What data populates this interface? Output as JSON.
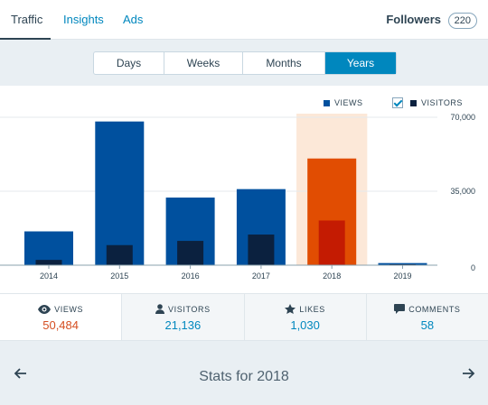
{
  "tabs": [
    {
      "label": "Traffic",
      "active": true
    },
    {
      "label": "Insights",
      "active": false
    },
    {
      "label": "Ads",
      "active": false
    }
  ],
  "followers": {
    "label": "Followers",
    "count": "220"
  },
  "periods": [
    {
      "label": "Days",
      "selected": false
    },
    {
      "label": "Weeks",
      "selected": false
    },
    {
      "label": "Months",
      "selected": false
    },
    {
      "label": "Years",
      "selected": true
    }
  ],
  "legend": {
    "views": "VIEWS",
    "visitors": "VISITORS",
    "visitors_checked": true
  },
  "colors": {
    "views": "#00509e",
    "visitors": "#0b213f",
    "selected_views": "#e14d02",
    "selected_visitors": "#c41b02",
    "selected_band": "#fce8d8",
    "accent": "#0087be"
  },
  "chart_data": {
    "type": "bar",
    "categories": [
      "2014",
      "2015",
      "2016",
      "2017",
      "2018",
      "2019"
    ],
    "series": [
      {
        "name": "VIEWS",
        "values": [
          16000,
          68000,
          32000,
          36000,
          50484,
          1000
        ]
      },
      {
        "name": "VISITORS",
        "values": [
          2500,
          9500,
          11500,
          14500,
          21136,
          300
        ]
      }
    ],
    "selected_category": "2018",
    "y_ticks": [
      "70,000",
      "35,000",
      "0"
    ],
    "ylim": [
      0,
      70000
    ],
    "grid": true,
    "legend_position": "top-right"
  },
  "stats": [
    {
      "label": "VIEWS",
      "value": "50,484",
      "icon": "eye-icon",
      "active": true
    },
    {
      "label": "VISITORS",
      "value": "21,136",
      "icon": "person-icon",
      "active": false
    },
    {
      "label": "LIKES",
      "value": "1,030",
      "icon": "star-icon",
      "active": false
    },
    {
      "label": "COMMENTS",
      "value": "58",
      "icon": "comment-icon",
      "active": false
    }
  ],
  "footer": {
    "title": "Stats for 2018"
  }
}
